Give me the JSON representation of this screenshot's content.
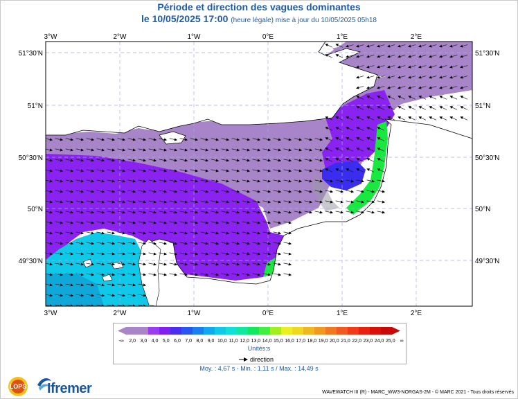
{
  "title": "Période et direction des vagues dominantes",
  "subtitle": {
    "date": "le 10/05/2025 17:00",
    "note": "(heure légale) mise à jour du 10/05/2025 05h18"
  },
  "axes": {
    "lon_labels": [
      "3°W",
      "2°W",
      "1°W",
      "0°E",
      "1°E",
      "2°E"
    ],
    "lat_labels": [
      "51°30'N",
      "51°N",
      "50°30'N",
      "50°N",
      "49°30'N"
    ]
  },
  "legend": {
    "ticks": [
      "-∞",
      "2,0",
      "3,0",
      "4,0",
      "5,0",
      "6,0",
      "7,0",
      "8,0",
      "9,0",
      "10,0",
      "11,0",
      "12,0",
      "13,0",
      "14,0",
      "15,0",
      "16,0",
      "17,0",
      "18,0",
      "19,0",
      "20,0",
      "21,0",
      "22,0",
      "23,0",
      "24,0",
      "25,0",
      "∞"
    ],
    "colors": [
      "#a884c8",
      "#a884c8",
      "#9a3cf0",
      "#7f22f0",
      "#4a2df0",
      "#2a55f0",
      "#1a80f0",
      "#10a8ee",
      "#10c8e8",
      "#10e0d8",
      "#10e8a0",
      "#10e860",
      "#40f040",
      "#a0f020",
      "#e8f020",
      "#f0d820",
      "#f0b820",
      "#f09820",
      "#f07820",
      "#f05a20",
      "#f03a18",
      "#e82010",
      "#d81008",
      "#c80808"
    ],
    "units": "Unités:s",
    "direction_label": "direction"
  },
  "stats": "Moy. : 4,67 s  -  Min. : 1,11 s / Max. : 14,49 s",
  "footer": "WAVEWATCH III (R) - MARC_WW3-NORGAS-2M - © MARC 2021 - Tous droits réservés",
  "logos": {
    "lops": "LOPS",
    "ifremer": "Ifremer"
  },
  "colors": {
    "title": "#1e5aa8",
    "land": "#ffffff",
    "purple_low": "#a884c8",
    "violet": "#8a22f0",
    "blue": "#3a2df0",
    "cyan": "#10c8e8",
    "green": "#18e840"
  }
}
